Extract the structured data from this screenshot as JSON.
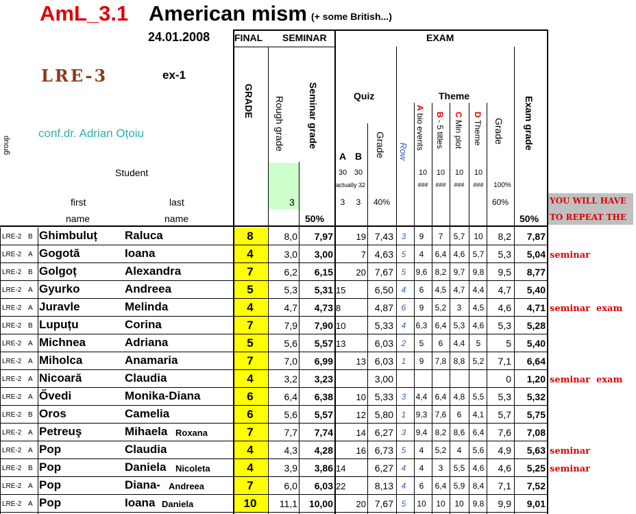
{
  "title": {
    "course": "AmL_3.1",
    "name": "American mism",
    "note": "(+ some British...)",
    "date": "24.01.2008",
    "group": "LRE-3",
    "ex": "ex-1",
    "teacher": "conf.dr. Adrian Oțoiu"
  },
  "headers": {
    "final": "FINAL",
    "seminar": "SEMINAR",
    "exam": "EXAM",
    "grade": "GRADE",
    "rough_grade": "Rough grade",
    "seminar_grade": "Seminar grade",
    "quiz": "Quiz",
    "theme": "Theme",
    "quiz_a": "A",
    "quiz_b": "B",
    "grade_col": "Grade",
    "row": "Row",
    "theme_a_letter": "A",
    "theme_a": "bio events",
    "theme_b_letter": "B",
    "theme_b": "- 5 titles",
    "theme_c_letter": "C",
    "theme_c": "Min plot",
    "theme_d_letter": "D",
    "theme_d": "Theme",
    "theme_grade": "Grade",
    "exam_grade": "Exam grade",
    "group": "group",
    "student": "Student",
    "first": "first",
    "last": "last",
    "name1": "name",
    "name2": "name",
    "rough_weight": "3",
    "seminar_pct": "50%",
    "qa_max": "30",
    "qb_max": "30",
    "actually": "actually 32",
    "qa_w": "3",
    "qb_w": "3",
    "quiz_pct": "40%",
    "ta_max": "10",
    "tb_max": "10",
    "tc_max": "10",
    "td_max": "10",
    "ta_h": "###",
    "tb_h": "###",
    "tc_h": "###",
    "td_h": "###",
    "theme_100": "100%",
    "theme_60": "60%",
    "exam_pct": "50%",
    "repeat_1": "YOU WILL HAVE",
    "repeat_2": "TO REPEAT THE"
  },
  "rows": [
    {
      "grp": "LRE-2",
      "sub": "B",
      "first": "Ghimbuluț",
      "last": "Raluca",
      "last2": "",
      "final": "8",
      "rough": "8,0",
      "sem": "7,97",
      "qa": "",
      "qb": "19",
      "quiz": "7,43",
      "row": "3",
      "ta": "9",
      "tb": "7",
      "tc": "5,7",
      "td": "10",
      "tg": "8,2",
      "exam": "7,87",
      "r1": "",
      "r2": ""
    },
    {
      "grp": "LRE-2",
      "sub": "A",
      "first": "Gogotă",
      "last": "Ioana",
      "last2": "",
      "final": "4",
      "rough": "3,0",
      "sem": "3,00",
      "qa": "",
      "qb": "7",
      "quiz": "4,63",
      "row": "5",
      "ta": "4",
      "tb": "6,4",
      "tc": "4,6",
      "td": "5,7",
      "tg": "5,3",
      "exam": "5,04",
      "r1": "seminar",
      "r2": ""
    },
    {
      "grp": "LRE-2",
      "sub": "B",
      "first": "Golgoț",
      "last": "Alexandra",
      "last2": "",
      "final": "7",
      "rough": "6,2",
      "sem": "6,15",
      "qa": "",
      "qb": "20",
      "quiz": "7,67",
      "row": "5",
      "ta": "9,6",
      "tb": "8,2",
      "tc": "9,7",
      "td": "9,8",
      "tg": "9,5",
      "exam": "8,77",
      "r1": "",
      "r2": ""
    },
    {
      "grp": "LRE-2",
      "sub": "A",
      "first": "Gyurko",
      "last": "Andreea",
      "last2": "",
      "final": "5",
      "rough": "5,3",
      "sem": "5,31",
      "qa": "15",
      "qb": "",
      "quiz": "6,50",
      "row": "4",
      "ta": "6",
      "tb": "4,5",
      "tc": "4,7",
      "td": "4,4",
      "tg": "4,7",
      "exam": "5,40",
      "r1": "",
      "r2": ""
    },
    {
      "grp": "LRE-2",
      "sub": "A",
      "first": "Juravle",
      "last": "Melinda",
      "last2": "",
      "final": "4",
      "rough": "4,7",
      "sem": "4,73",
      "qa": "8",
      "qb": "",
      "quiz": "4,87",
      "row": "6",
      "ta": "9",
      "tb": "5,2",
      "tc": "3",
      "td": "4,5",
      "tg": "4,6",
      "exam": "4,71",
      "r1": "seminar",
      "r2": "exam"
    },
    {
      "grp": "LRE-2",
      "sub": "B",
      "first": "Lupuțu",
      "last": "Corina",
      "last2": "",
      "final": "7",
      "rough": "7,9",
      "sem": "7,90",
      "qa": "10",
      "qb": "",
      "quiz": "5,33",
      "row": "4",
      "ta": "6,3",
      "tb": "6,4",
      "tc": "5,3",
      "td": "4,6",
      "tg": "5,3",
      "exam": "5,28",
      "r1": "",
      "r2": ""
    },
    {
      "grp": "LRE-2",
      "sub": "A",
      "first": "Michnea",
      "last": "Adriana",
      "last2": "",
      "final": "5",
      "rough": "5,6",
      "sem": "5,57",
      "qa": "13",
      "qb": "",
      "quiz": "6,03",
      "row": "2",
      "ta": "5",
      "tb": "6",
      "tc": "4,4",
      "td": "5",
      "tg": "5",
      "exam": "5,40",
      "r1": "",
      "r2": ""
    },
    {
      "grp": "LRE-2",
      "sub": "A",
      "first": "Miholca",
      "last": "Anamaria",
      "last2": "",
      "final": "7",
      "rough": "7,0",
      "sem": "6,99",
      "qa": "",
      "qb": "13",
      "quiz": "6,03",
      "row": "1",
      "ta": "9",
      "tb": "7,8",
      "tc": "8,8",
      "td": "5,2",
      "tg": "7,1",
      "exam": "6,64",
      "r1": "",
      "r2": ""
    },
    {
      "grp": "LRE-2",
      "sub": "A",
      "first": "Nicoară",
      "last": "Claudia",
      "last2": "",
      "final": "4",
      "rough": "3,2",
      "sem": "3,23",
      "qa": "",
      "qb": "",
      "quiz": "3,00",
      "row": "",
      "ta": "",
      "tb": "",
      "tc": "",
      "td": "",
      "tg": "0",
      "exam": "1,20",
      "r1": "seminar",
      "r2": "exam"
    },
    {
      "grp": "LRE-2",
      "sub": "A",
      "first": "Ővedi",
      "last": "Monika-Diana",
      "last2": "",
      "final": "6",
      "rough": "6,4",
      "sem": "6,38",
      "qa": "",
      "qb": "10",
      "quiz": "5,33",
      "row": "3",
      "ta": "4,4",
      "tb": "6,4",
      "tc": "4,8",
      "td": "5,5",
      "tg": "5,3",
      "exam": "5,32",
      "r1": "",
      "r2": ""
    },
    {
      "grp": "LRE-2",
      "sub": "B",
      "first": "Oros",
      "last": "Camelia",
      "last2": "",
      "final": "6",
      "rough": "5,6",
      "sem": "5,57",
      "qa": "",
      "qb": "12",
      "quiz": "5,80",
      "row": "1",
      "ta": "9,3",
      "tb": "7,6",
      "tc": "6",
      "td": "4,1",
      "tg": "5,7",
      "exam": "5,75",
      "r1": "",
      "r2": ""
    },
    {
      "grp": "LRE-2",
      "sub": "A",
      "first": "Petreuş",
      "last": "Mihaela",
      "last2": "Roxana",
      "final": "7",
      "rough": "7,7",
      "sem": "7,74",
      "qa": "",
      "qb": "14",
      "quiz": "6,27",
      "row": "3",
      "ta": "9,4",
      "tb": "8,2",
      "tc": "8,6",
      "td": "6,4",
      "tg": "7,6",
      "exam": "7,08",
      "r1": "",
      "r2": ""
    },
    {
      "grp": "LRE-2",
      "sub": "A",
      "first": "Pop",
      "last": "Claudia",
      "last2": "",
      "final": "4",
      "rough": "4,3",
      "sem": "4,28",
      "qa": "",
      "qb": "16",
      "quiz": "6,73",
      "row": "5",
      "ta": "4",
      "tb": "5,2",
      "tc": "4",
      "td": "5,6",
      "tg": "4,9",
      "exam": "5,63",
      "r1": "seminar",
      "r2": ""
    },
    {
      "grp": "LRE-2",
      "sub": "B",
      "first": "Pop",
      "last": "Daniela",
      "last2": "Nicoleta",
      "final": "4",
      "rough": "3,9",
      "sem": "3,86",
      "qa": "14",
      "qb": "",
      "quiz": "6,27",
      "row": "4",
      "ta": "4",
      "tb": "3",
      "tc": "5,5",
      "td": "4,6",
      "tg": "4,6",
      "exam": "5,25",
      "r1": "seminar",
      "r2": ""
    },
    {
      "grp": "LRE-2",
      "sub": "A",
      "first": "Pop",
      "last": "Diana-",
      "last2": "Andreea",
      "final": "7",
      "rough": "6,0",
      "sem": "6,03",
      "qa": "22",
      "qb": "",
      "quiz": "8,13",
      "row": "4",
      "ta": "6",
      "tb": "6,4",
      "tc": "5,9",
      "td": "8,4",
      "tg": "7,1",
      "exam": "7,52",
      "r1": "",
      "r2": ""
    },
    {
      "grp": "LRE-2",
      "sub": "A",
      "first": "Pop",
      "last": "Ioana",
      "last2": "Daniela",
      "final": "10",
      "rough": "11,1",
      "sem": "10,00",
      "qa": "",
      "qb": "20",
      "quiz": "7,67",
      "row": "5",
      "ta": "10",
      "tb": "10",
      "tc": "10",
      "td": "9,8",
      "tg": "9,9",
      "exam": "9,01",
      "r1": "",
      "r2": ""
    }
  ]
}
